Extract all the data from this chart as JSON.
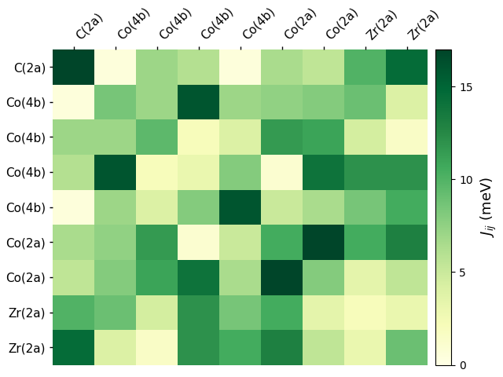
{
  "labels": [
    "C(2a)",
    "Co(4b)",
    "Co(4b)",
    "Co(4b)",
    "Co(4b)",
    "Co(2a)",
    "Co(2a)",
    "Zr(2a)",
    "Zr(2a)"
  ],
  "matrix": [
    [
      17.0,
      0.5,
      7.0,
      6.0,
      0.5,
      6.5,
      5.5,
      10.0,
      14.5
    ],
    [
      0.5,
      8.5,
      7.0,
      16.0,
      7.0,
      7.5,
      8.0,
      9.0,
      4.0
    ],
    [
      7.0,
      7.0,
      9.5,
      2.0,
      4.0,
      11.5,
      11.0,
      4.5,
      1.5
    ],
    [
      6.0,
      16.0,
      2.0,
      3.0,
      8.0,
      1.0,
      14.0,
      12.0,
      12.0
    ],
    [
      0.5,
      7.0,
      4.0,
      8.0,
      16.0,
      5.0,
      6.5,
      8.5,
      10.5
    ],
    [
      6.5,
      7.5,
      11.5,
      1.0,
      5.0,
      10.5,
      17.0,
      10.5,
      13.0
    ],
    [
      5.5,
      8.0,
      11.0,
      14.0,
      6.5,
      17.0,
      8.0,
      3.5,
      5.5
    ],
    [
      10.0,
      9.0,
      4.5,
      12.0,
      8.5,
      10.5,
      3.5,
      2.0,
      3.0
    ],
    [
      14.5,
      4.0,
      1.5,
      12.0,
      10.5,
      13.0,
      5.5,
      3.0,
      9.0
    ]
  ],
  "vmin": 0,
  "vmax": 17,
  "cmap": "YlGn",
  "colorbar_label": "$J_{ij}$ (meV)",
  "colorbar_ticks": [
    0,
    5,
    10,
    15
  ],
  "figsize": [
    6.4,
    4.8
  ],
  "dpi": 100,
  "tick_fontsize": 11,
  "cbar_label_fontsize": 13,
  "cbar_tick_fontsize": 10
}
